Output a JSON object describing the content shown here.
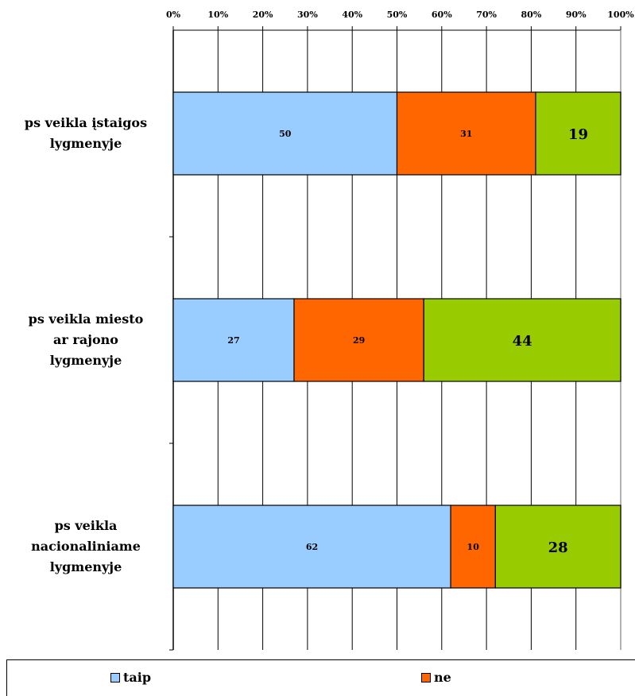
{
  "chart_data": {
    "type": "bar",
    "orientation": "horizontal",
    "stacked": "percent",
    "categories": [
      [
        "ps veikla įstaigos",
        "lygmenyje"
      ],
      [
        "ps veikla miesto",
        "ar rajono",
        "lygmenyje"
      ],
      [
        "ps veikla",
        "nacionaliniame",
        "lygmenyje"
      ]
    ],
    "series": [
      {
        "name": "taip",
        "color": "#99ccff",
        "values": [
          50,
          27,
          62
        ]
      },
      {
        "name": "ne",
        "color": "#ff6600",
        "values": [
          31,
          29,
          10
        ]
      },
      {
        "name": "",
        "color": "#99cc00",
        "values": [
          19,
          44,
          28
        ]
      }
    ],
    "xlim": [
      0,
      100
    ],
    "xticks": [
      "0%",
      "10%",
      "20%",
      "30%",
      "40%",
      "50%",
      "60%",
      "70%",
      "80%",
      "90%",
      "100%"
    ],
    "grid": true,
    "legend_position": "bottom"
  },
  "legend": {
    "taip": "taip",
    "ne": "ne"
  }
}
